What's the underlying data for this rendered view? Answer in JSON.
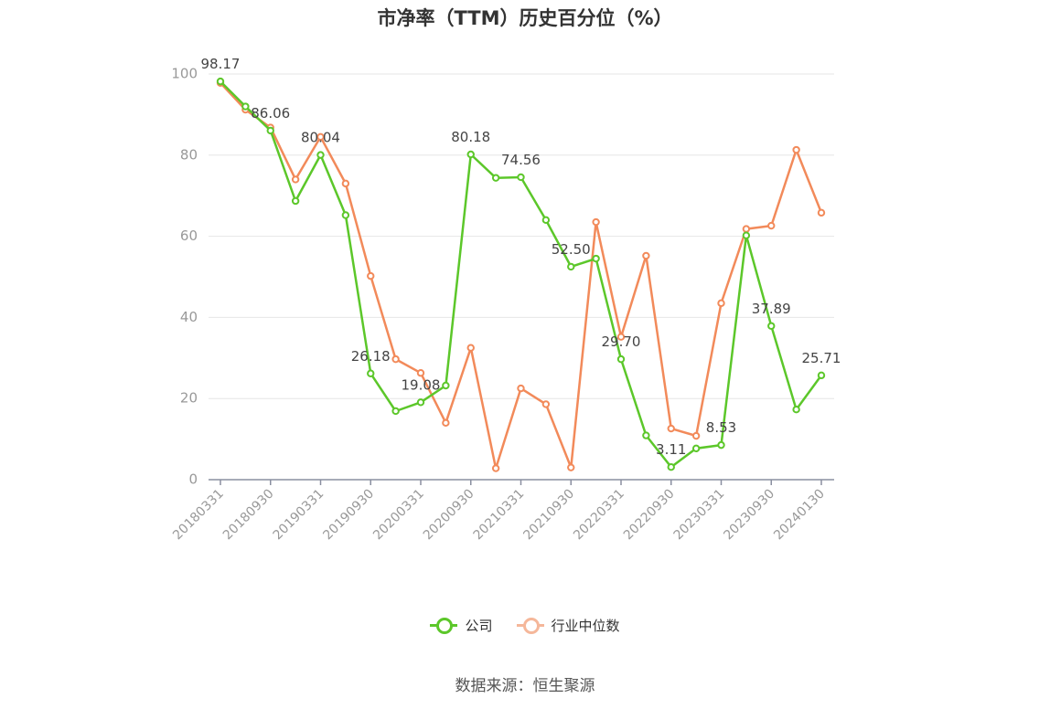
{
  "page": {
    "title": "市净率（TTM）历史百分位（%）",
    "source": "数据来源：恒生聚源"
  },
  "colors": {
    "company": "#5cc72a",
    "industry": "#f28a5a",
    "industry_legend": "#f5b79a",
    "grid": "#e6e6e6",
    "axis": "#8a8fa0"
  },
  "chart_data": {
    "type": "line",
    "title": "市净率（TTM）历史百分位（%）",
    "ylim": [
      0,
      100
    ],
    "yticks": [
      0,
      20,
      40,
      60,
      80,
      100
    ],
    "xtick_labels": [
      "20180331",
      "20180930",
      "20190331",
      "20190930",
      "20200331",
      "20200930",
      "20210331",
      "20210930",
      "20220331",
      "20220930",
      "20230331",
      "20230930",
      "20240130"
    ],
    "x": [
      "20180331",
      "20180630",
      "20180930",
      "20181231",
      "20190331",
      "20190630",
      "20190930",
      "20191231",
      "20200331",
      "20200630",
      "20200930",
      "20201231",
      "20210331",
      "20210630",
      "20210930",
      "20211231",
      "20220331",
      "20220630",
      "20220930",
      "20221231",
      "20230331",
      "20230630",
      "20230930",
      "20231231",
      "20240130"
    ],
    "series": [
      {
        "name": "公司",
        "values": [
          98.17,
          92,
          86.06,
          68.7,
          80.04,
          65.2,
          26.18,
          16.9,
          19.08,
          23.2,
          80.18,
          74.4,
          74.56,
          64,
          52.5,
          54.5,
          29.7,
          10.9,
          3.11,
          7.7,
          8.53,
          60.2,
          37.89,
          17.3,
          25.71
        ],
        "labels": {
          "0": "98.17",
          "2": "86.06",
          "4": "80.04",
          "6": "26.18",
          "8": "19.08",
          "10": "80.18",
          "12": "74.56",
          "14": "52.50",
          "16": "29.70",
          "18": "3.11",
          "20": "8.53",
          "22": "37.89",
          "24": "25.71"
        }
      },
      {
        "name": "行业中位数",
        "values": [
          97.8,
          91.2,
          86.8,
          74,
          84.5,
          73,
          50.2,
          29.7,
          26.3,
          14,
          32.5,
          2.8,
          22.5,
          18.6,
          3,
          63.5,
          35.2,
          55.2,
          12.6,
          10.8,
          43.5,
          61.8,
          62.6,
          81.3,
          65.8
        ]
      }
    ],
    "legend": [
      "公司",
      "行业中位数"
    ],
    "legend_position": "bottom",
    "grid": "horizontal"
  }
}
